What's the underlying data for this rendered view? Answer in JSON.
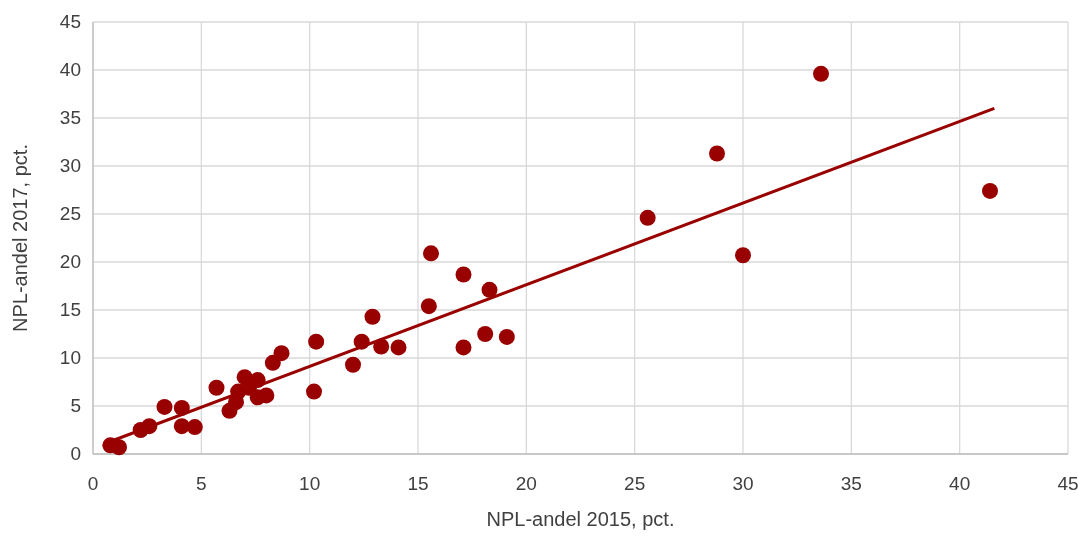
{
  "chart_data": {
    "type": "scatter",
    "xlabel": "NPL-andel 2015, pct.",
    "ylabel": "NPL-andel 2017, pct.",
    "xlim": [
      0,
      45
    ],
    "xticks": [
      0,
      5,
      10,
      15,
      20,
      25,
      30,
      35,
      40,
      45
    ],
    "ylim": [
      0,
      45
    ],
    "yticks": [
      0,
      5,
      10,
      15,
      20,
      25,
      30,
      35,
      40,
      45
    ],
    "grid": true,
    "marker": "circle",
    "series": [
      {
        "color": "#990000",
        "x": [
          0.8,
          1.2,
          2.2,
          2.6,
          3.3,
          4.1,
          4.1,
          4.7,
          5.7,
          6.3,
          6.6,
          6.7,
          7.0,
          7.2,
          7.6,
          7.6,
          8.0,
          8.3,
          8.7,
          10.2,
          10.3,
          12.0,
          12.4,
          12.9,
          13.3,
          14.1,
          15.5,
          15.6,
          17.1,
          17.1,
          18.1,
          18.3,
          19.1,
          25.6,
          28.8,
          30.0,
          33.6,
          41.4
        ],
        "values": [
          0.9,
          0.7,
          2.5,
          2.9,
          4.9,
          4.8,
          2.9,
          2.8,
          6.9,
          4.5,
          5.4,
          6.5,
          8.0,
          6.9,
          7.7,
          5.9,
          6.1,
          9.5,
          10.5,
          6.5,
          11.7,
          9.3,
          11.7,
          14.3,
          11.2,
          11.1,
          15.4,
          20.9,
          18.7,
          11.1,
          12.5,
          17.1,
          12.2,
          24.6,
          31.3,
          20.7,
          39.6,
          27.4
        ]
      },
      {
        "type": "line",
        "color": "#990000",
        "marker": "none",
        "x": [
          0.8,
          41.6
        ],
        "values": [
          1.3,
          36.0
        ]
      }
    ]
  }
}
